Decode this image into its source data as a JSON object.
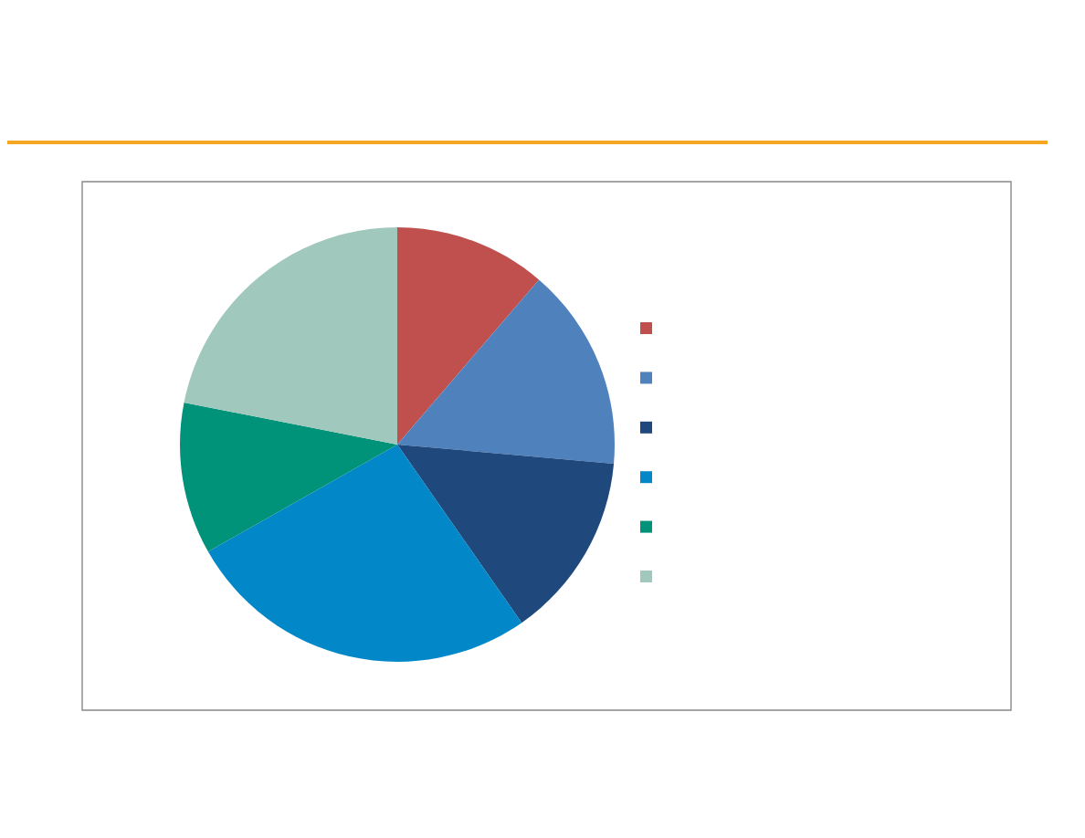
{
  "chart_data": {
    "type": "pie",
    "categories": [
      null,
      null,
      null,
      null,
      null,
      null
    ],
    "values": [
      11.3,
      15.1,
      13.9,
      26.5,
      11.3,
      21.9
    ],
    "colors": [
      "#c0504d",
      "#4f81bd",
      "#1f497d",
      "#0288c8",
      "#00937a",
      "#a0c8bc"
    ]
  }
}
